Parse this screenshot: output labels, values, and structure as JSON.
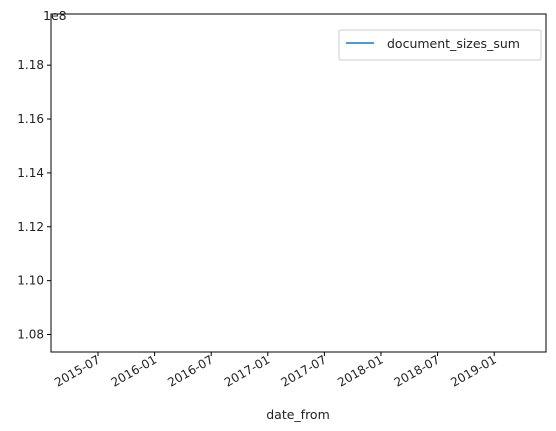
{
  "chart_data": {
    "type": "line",
    "title": "",
    "xlabel": "date_from",
    "ylabel": "",
    "y_offset_label": "1e8",
    "x_ticks": [
      "2015-07",
      "2016-01",
      "2016-07",
      "2017-01",
      "2017-07",
      "2018-01",
      "2018-07",
      "2019-01"
    ],
    "y_ticks": [
      "1.08",
      "1.10",
      "1.12",
      "1.14",
      "1.16",
      "1.18"
    ],
    "y_tick_values": [
      1.08,
      1.1,
      1.12,
      1.14,
      1.16,
      1.18
    ],
    "ylim": [
      1.0735,
      1.199
    ],
    "grid": false,
    "legend_position": "top-right",
    "series": [
      {
        "name": "document_sizes_sum",
        "color": "#1f77b4",
        "x": [],
        "y": []
      }
    ]
  }
}
